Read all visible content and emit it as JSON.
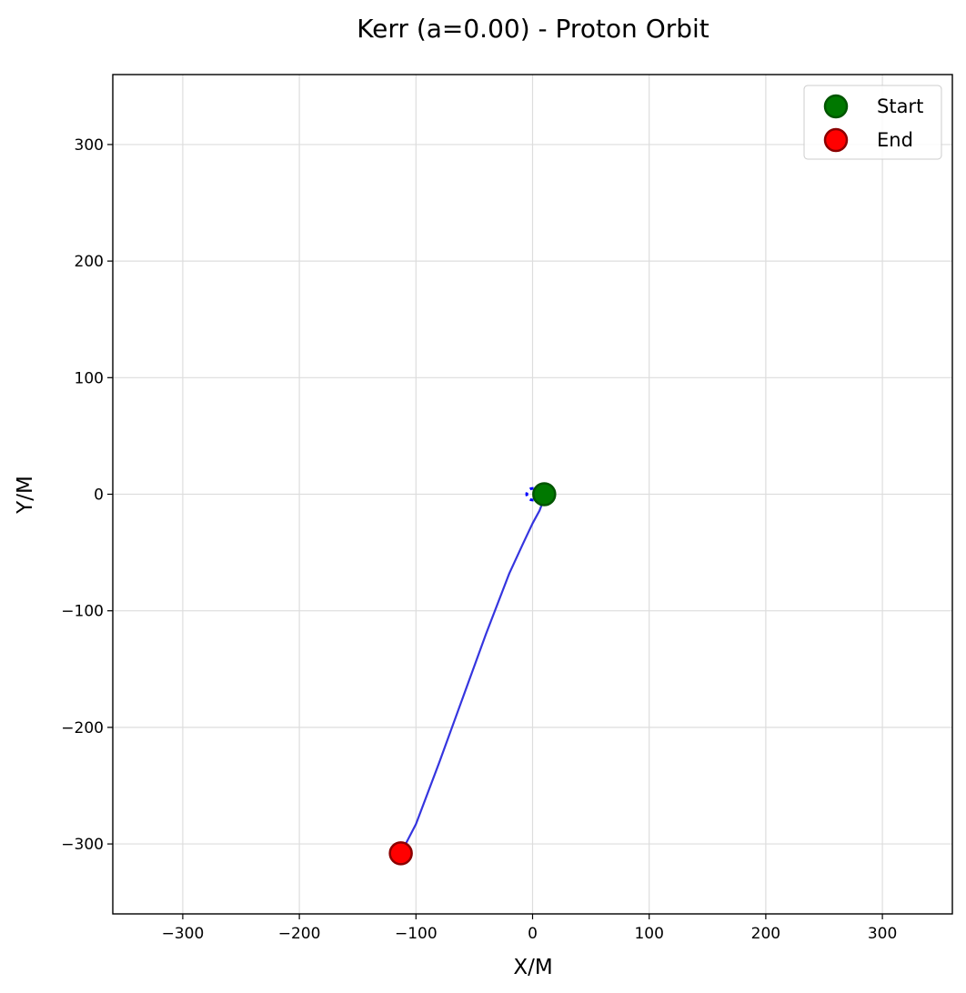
{
  "chart_data": {
    "type": "scatter",
    "title": "Kerr (a=0.00) - Proton Orbit",
    "xlabel": "X/M",
    "ylabel": "Y/M",
    "xlim": [
      -360,
      360
    ],
    "ylim": [
      -360,
      360
    ],
    "xticks": [
      -300,
      -200,
      -100,
      0,
      100,
      200,
      300
    ],
    "yticks": [
      -300,
      -200,
      -100,
      0,
      100,
      200,
      300
    ],
    "tick_labels": {
      "x": [
        "−300",
        "−200",
        "−100",
        "0",
        "100",
        "200",
        "300"
      ],
      "y": [
        "−300",
        "−200",
        "−100",
        "0",
        "100",
        "200",
        "300"
      ]
    },
    "grid": true,
    "legend_position": "top-right",
    "series": [
      {
        "name": "orbit",
        "kind": "line",
        "color": "#1f1fdc",
        "x": [
          10,
          9,
          6,
          0,
          -8,
          -20,
          -40,
          -60,
          -80,
          -100,
          -113
        ],
        "y": [
          0,
          -6,
          -14,
          -25,
          -42,
          -68,
          -120,
          -175,
          -230,
          -283,
          -308
        ]
      },
      {
        "name": "horizon",
        "kind": "dashed-circle",
        "color": "#0000ff",
        "cx": 0,
        "cy": 0,
        "r": 5
      }
    ],
    "markers": [
      {
        "label": "Start",
        "x": 10,
        "y": 0,
        "fill": "#007800",
        "edge": "#005500"
      },
      {
        "label": "End",
        "x": -113,
        "y": -308,
        "fill": "#ff0000",
        "edge": "#8b0000"
      }
    ]
  }
}
